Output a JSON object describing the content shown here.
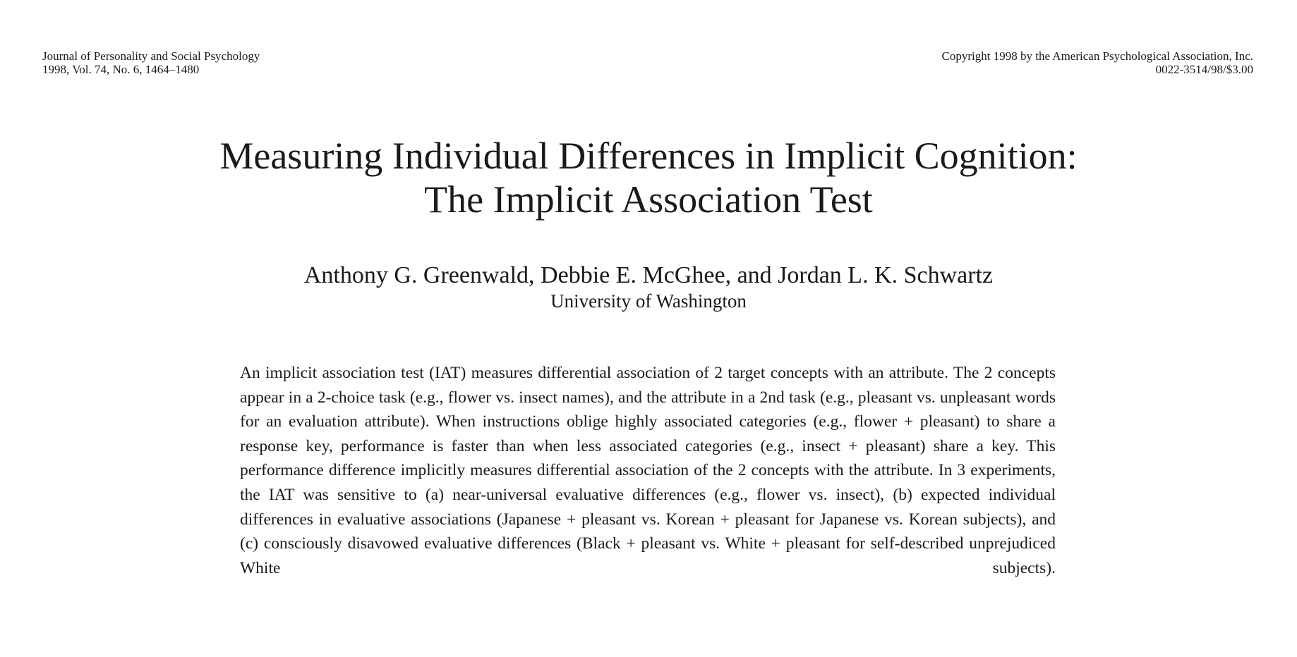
{
  "header": {
    "journal_name": "Journal of Personality and Social Psychology",
    "volume_info": "1998, Vol. 74, No. 6, 1464–1480",
    "copyright": "Copyright 1998 by the American Psychological Association, Inc.",
    "code": "0022-3514/98/$3.00"
  },
  "article": {
    "title_line1": "Measuring Individual Differences in Implicit Cognition:",
    "title_line2": "The Implicit Association Test",
    "authors": "Anthony G. Greenwald, Debbie E. McGhee, and Jordan L. K. Schwartz",
    "affiliation": "University of Washington",
    "abstract": "An implicit association test (IAT) measures differential association of 2 target concepts with an attribute. The 2 concepts appear in a 2-choice task (e.g., flower vs. insect names), and the attribute in a 2nd task (e.g., pleasant vs. unpleasant words for an evaluation attribute). When instructions oblige highly associated categories (e.g., flower + pleasant) to share a response key, performance is faster than when less associated categories (e.g., insect + pleasant) share a key. This performance difference implicitly measures differential association of the 2 concepts with the attribute. In 3 experiments, the IAT was sensitive to (a) near-universal evaluative differences (e.g., flower vs. insect), (b) expected individual differences in evaluative associations (Japanese + pleasant vs. Korean + pleasant for Japanese vs. Korean subjects), and (c) consciously disavowed evaluative differences (Black + pleasant vs. White + pleasant for self-described unprejudiced White subjects)."
  }
}
